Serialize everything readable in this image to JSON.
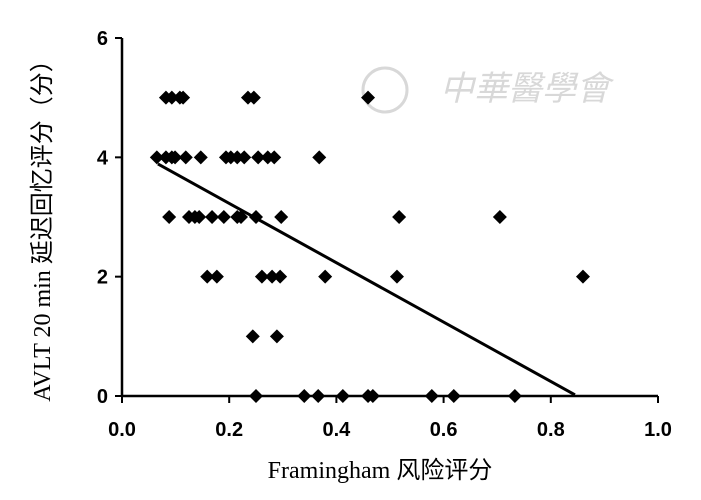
{
  "chart_data": {
    "type": "scatter",
    "watermark": "中華醫學會",
    "xlabel": "Framingham 风险评分",
    "ylabel": "AVLT 20 min 延迟回忆评分（分）",
    "x": [
      0.082,
      0.093,
      0.108,
      0.114,
      0.235,
      0.246,
      0.459,
      0.065,
      0.082,
      0.093,
      0.099,
      0.119,
      0.147,
      0.194,
      0.203,
      0.215,
      0.228,
      0.254,
      0.272,
      0.284,
      0.368,
      0.088,
      0.125,
      0.136,
      0.144,
      0.168,
      0.19,
      0.215,
      0.222,
      0.25,
      0.297,
      0.517,
      0.705,
      0.159,
      0.177,
      0.261,
      0.28,
      0.295,
      0.379,
      0.513,
      0.86,
      0.244,
      0.289,
      0.25,
      0.34,
      0.366,
      0.412,
      0.459,
      0.468,
      0.578,
      0.619,
      0.733
    ],
    "y": [
      5,
      5,
      5,
      5,
      5,
      5,
      5,
      4,
      4,
      4,
      4,
      4,
      4,
      4,
      4,
      4,
      4,
      4,
      4,
      4,
      4,
      3,
      3,
      3,
      3,
      3,
      3,
      3,
      3,
      3,
      3,
      3,
      3,
      2,
      2,
      2,
      2,
      2,
      2,
      2,
      2,
      1,
      1,
      0,
      0,
      0,
      0,
      0,
      0,
      0,
      0,
      0
    ],
    "color": "#000000",
    "fit": {
      "x": [
        0.067,
        0.845
      ],
      "y": [
        3.89,
        0.02
      ]
    },
    "xlim": [
      0,
      1
    ],
    "ylim": [
      0,
      6
    ],
    "xticks": [
      {
        "value": 0,
        "label": "0.0"
      },
      0.2,
      0.4,
      0.6,
      0.8,
      {
        "value": 1,
        "label": "1.0"
      }
    ],
    "yticks": [
      0,
      2,
      4,
      6
    ]
  }
}
